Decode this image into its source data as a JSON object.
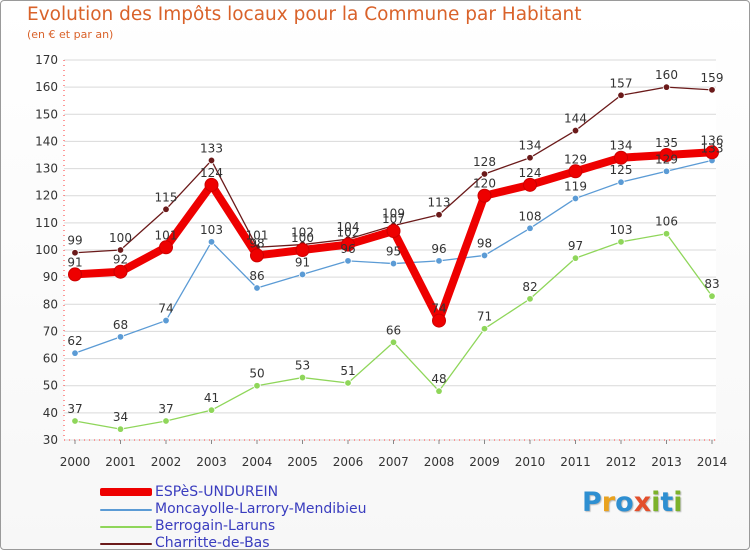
{
  "header": {
    "title": "Evolution des Impôts locaux pour la Commune par Habitant",
    "subtitle": "(en € et par an)"
  },
  "logo": {
    "text": "Proxiti",
    "letters": [
      {
        "ch": "P",
        "color": "#2e8fd1"
      },
      {
        "ch": "r",
        "color": "#e9a21f"
      },
      {
        "ch": "o",
        "color": "#2e8fd1"
      },
      {
        "ch": "x",
        "color": "#e34f2c"
      },
      {
        "ch": "i",
        "color": "#7cb22b"
      },
      {
        "ch": "t",
        "color": "#2e8fd1"
      },
      {
        "ch": "i",
        "color": "#7cb22b"
      }
    ]
  },
  "chart_data": {
    "type": "line",
    "x": [
      2000,
      2001,
      2002,
      2003,
      2004,
      2005,
      2006,
      2007,
      2008,
      2009,
      2010,
      2011,
      2012,
      2013,
      2014
    ],
    "ylim": [
      30,
      170
    ],
    "yticks": [
      30,
      40,
      50,
      60,
      70,
      80,
      90,
      100,
      110,
      120,
      130,
      140,
      150,
      160,
      170
    ],
    "grid": "horizontal",
    "legend_position": "bottom-left",
    "series": [
      {
        "name": "Charritte-de-Bas",
        "color": "#6b1a1a",
        "values": [
          99,
          100,
          115,
          133,
          101,
          102,
          104,
          109,
          113,
          128,
          134,
          144,
          157,
          160,
          159
        ]
      },
      {
        "name": "Berrogain-Laruns",
        "color": "#8fd65a",
        "values": [
          37,
          34,
          37,
          41,
          50,
          53,
          51,
          66,
          48,
          71,
          82,
          97,
          103,
          106,
          83
        ]
      },
      {
        "name": "Moncayolle-Larrory-Mendibieu",
        "color": "#5b9bd5",
        "values": [
          62,
          68,
          74,
          103,
          86,
          91,
          96,
          95,
          96,
          98,
          108,
          119,
          125,
          129,
          133
        ]
      },
      {
        "name": "ESPèS-UNDUREIN",
        "color": "#ee0000",
        "values": [
          91,
          92,
          101,
          124,
          98,
          100,
          102,
          107,
          74,
          120,
          124,
          129,
          134,
          135,
          136
        ]
      }
    ]
  },
  "legend": {
    "items": [
      {
        "label": "ESPèS-UNDUREIN",
        "color": "#ee0000"
      },
      {
        "label": "Moncayolle-Larrory-Mendibieu",
        "color": "#5b9bd5"
      },
      {
        "label": "Berrogain-Laruns",
        "color": "#8fd65a"
      },
      {
        "label": "Charritte-de-Bas",
        "color": "#6b1a1a"
      }
    ]
  }
}
